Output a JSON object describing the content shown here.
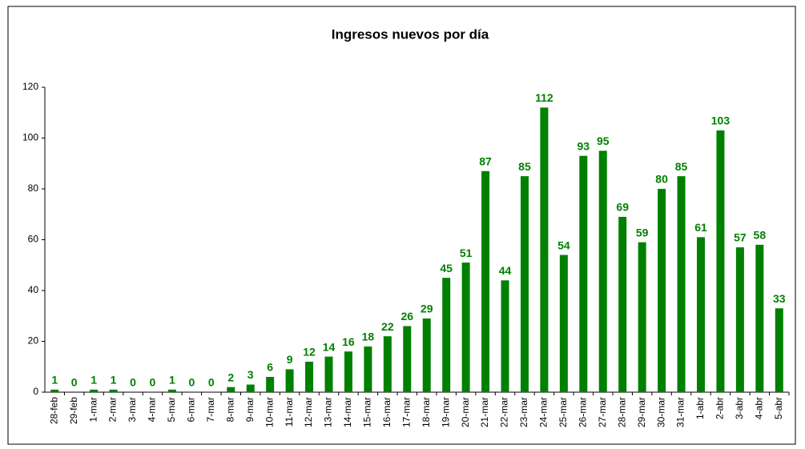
{
  "chart_data": {
    "type": "bar",
    "title": "Ingresos nuevos por día",
    "categories": [
      "28-feb",
      "29-feb",
      "1-mar",
      "2-mar",
      "3-mar",
      "4-mar",
      "5-mar",
      "6-mar",
      "7-mar",
      "8-mar",
      "9-mar",
      "10-mar",
      "11-mar",
      "12-mar",
      "13-mar",
      "14-mar",
      "15-mar",
      "16-mar",
      "17-mar",
      "18-mar",
      "19-mar",
      "20-mar",
      "21-mar",
      "22-mar",
      "23-mar",
      "24-mar",
      "25-mar",
      "26-mar",
      "27-mar",
      "28-mar",
      "29-mar",
      "30-mar",
      "31-mar",
      "1-abr",
      "2-abr",
      "3-abr",
      "4-abr",
      "5-abr"
    ],
    "values": [
      1,
      0,
      1,
      1,
      0,
      0,
      1,
      0,
      0,
      2,
      3,
      6,
      9,
      12,
      14,
      16,
      18,
      22,
      26,
      29,
      45,
      51,
      87,
      44,
      85,
      112,
      54,
      93,
      95,
      69,
      59,
      80,
      85,
      61,
      103,
      57,
      58,
      33
    ],
    "color": "#008000",
    "ylim": [
      0,
      120
    ],
    "yticks": [
      0,
      20,
      40,
      60,
      80,
      100,
      120
    ],
    "grid": false
  }
}
